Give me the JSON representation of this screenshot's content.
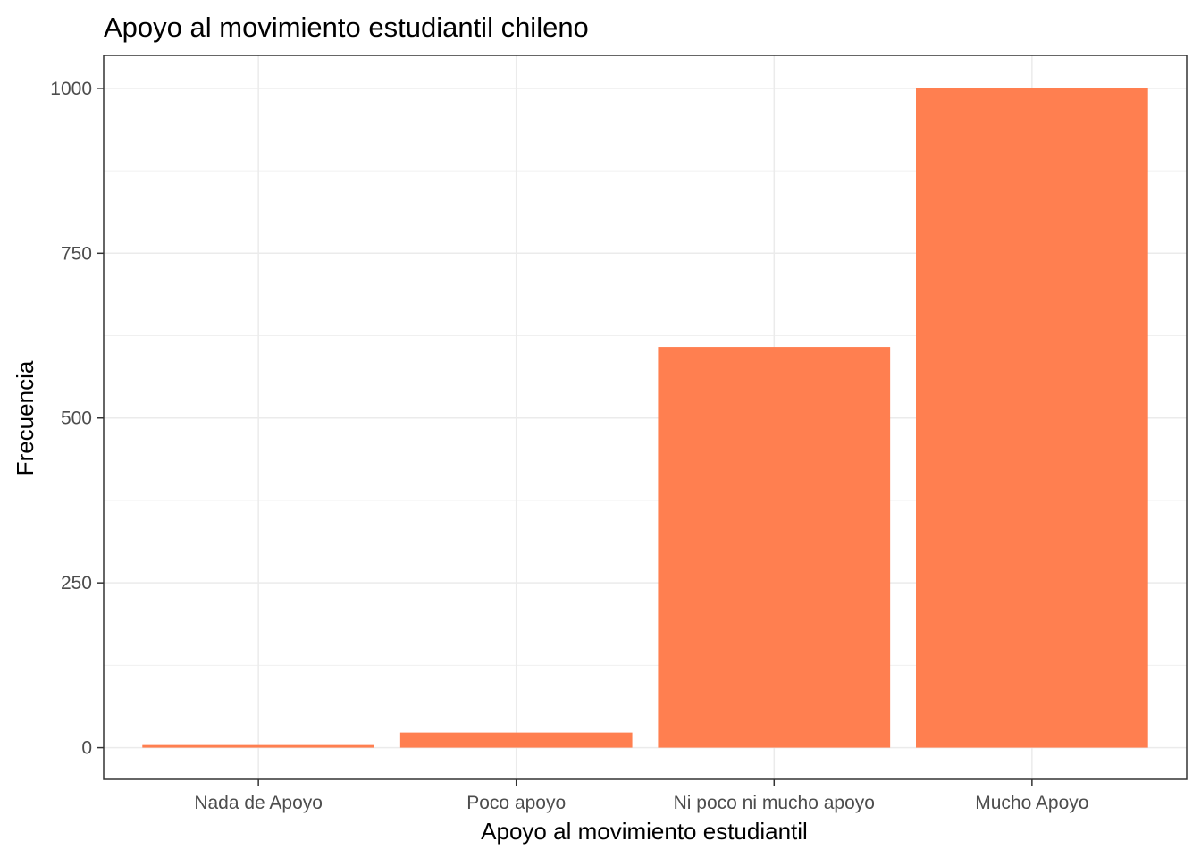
{
  "chart_data": {
    "type": "bar",
    "title": "Apoyo al movimiento estudiantil chileno",
    "xlabel": "Apoyo al movimiento estudiantil",
    "ylabel": "Frecuencia",
    "categories": [
      "Nada de Apoyo",
      "Poco apoyo",
      "Ni poco ni mucho apoyo",
      "Mucho Apoyo"
    ],
    "values": [
      4,
      23,
      608,
      1000
    ],
    "ylim": [
      -48,
      1050
    ],
    "yticks": [
      0,
      250,
      500,
      750,
      1000
    ],
    "ytick_labels": [
      "0",
      "250",
      "500",
      "750",
      "1000"
    ],
    "minor_yticks": [
      125,
      375,
      625,
      875
    ],
    "grid": true,
    "legend": "none",
    "bar_color": "#FF7F50"
  }
}
